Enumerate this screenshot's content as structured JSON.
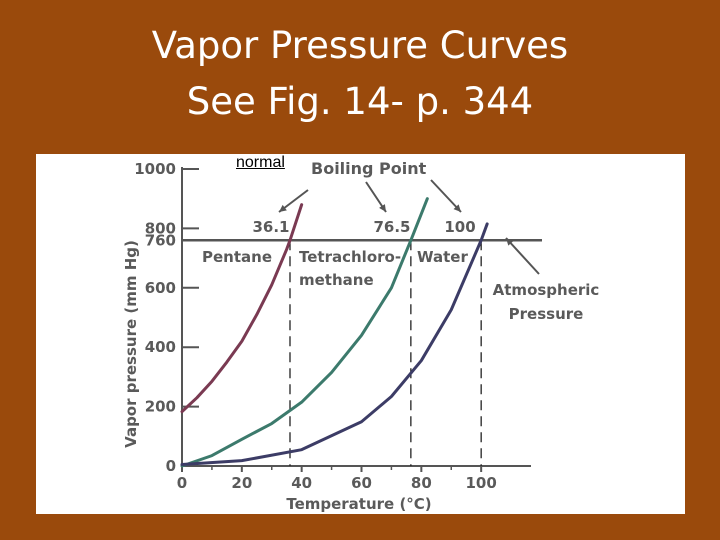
{
  "slide": {
    "title_line1": "Vapor Pressure Curves",
    "title_line2": "See Fig. 14- p. 344",
    "annotation": "normal"
  },
  "colors": {
    "background": "#9a4a0c",
    "pentane": "#7a3a52",
    "tetrachloromethane": "#3c7a6c",
    "water": "#3c3c66",
    "axis": "#555555",
    "label": "#5a5a5a"
  },
  "chart_data": {
    "type": "line",
    "xlabel": "Temperature (°C)",
    "ylabel": "Vapor pressure (mm Hg)",
    "xlim": [
      0,
      120
    ],
    "ylim": [
      0,
      1000
    ],
    "xticks": [
      0,
      20,
      40,
      60,
      80,
      100
    ],
    "yticks": [
      0,
      200,
      400,
      600,
      760,
      800,
      1000
    ],
    "grid": false,
    "series": [
      {
        "name": "Pentane",
        "color_key": "pentane",
        "x": [
          0,
          5,
          10,
          15,
          20,
          25,
          30,
          35,
          36.1,
          40
        ],
        "y": [
          183,
          230,
          285,
          350,
          420,
          510,
          610,
          730,
          760,
          880
        ]
      },
      {
        "name": "Tetrachloro-methane",
        "color_key": "tetrachloromethane",
        "x": [
          0,
          10,
          20,
          30,
          40,
          50,
          60,
          70,
          76.5,
          82
        ],
        "y": [
          0,
          35,
          90,
          143,
          215,
          315,
          440,
          600,
          760,
          900
        ]
      },
      {
        "name": "Water",
        "color_key": "water",
        "x": [
          0,
          20,
          40,
          60,
          70,
          80,
          90,
          100,
          102
        ],
        "y": [
          5,
          18,
          55,
          149,
          234,
          355,
          526,
          760,
          815
        ]
      }
    ],
    "atmospheric_pressure": 760,
    "boiling_points": [
      {
        "label": "36.1",
        "x": 36.1
      },
      {
        "label": "76.5",
        "x": 76.5
      },
      {
        "label": "100",
        "x": 100
      }
    ],
    "annotations": {
      "boiling_point": "Boiling Point",
      "atmospheric_line1": "Atmospheric",
      "atmospheric_line2": "Pressure"
    }
  }
}
